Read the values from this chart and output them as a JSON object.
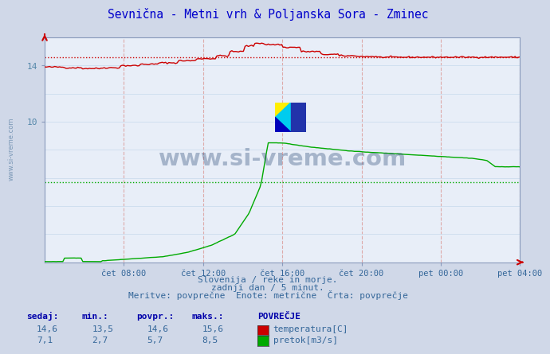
{
  "title": "Sevnična - Metni vrh & Poljanska Sora - Zminec",
  "title_color": "#0000cc",
  "bg_color": "#d0d8e8",
  "plot_bg_color": "#e8eef8",
  "temp_color": "#cc0000",
  "flow_color": "#00aa00",
  "avg_line_temp": 14.6,
  "avg_line_flow": 5.7,
  "temp_min": 13.5,
  "temp_max": 15.6,
  "temp_current": 14.6,
  "temp_avg": 14.6,
  "flow_min": 2.7,
  "flow_max": 8.5,
  "flow_current": 7.1,
  "flow_avg": 5.7,
  "x_tick_labels": [
    "čet 08:00",
    "čet 12:00",
    "čet 16:00",
    "čet 20:00",
    "pet 00:00",
    "pet 04:00"
  ],
  "footer_color": "#336699",
  "footer_line1": "Slovenija / reke in morje.",
  "footer_line2": "zadnji dan / 5 minut.",
  "footer_line3": "Meritve: povprečne  Enote: metrične  Črta: povprečje",
  "watermark": "www.si-vreme.com",
  "watermark_color": "#1a3a6a",
  "legend_title": "POVREČJE",
  "legend_temp": "temperatura[C]",
  "legend_flow": "pretok[m3/s]",
  "label_sedaj": "sedaj",
  "label_min": "min.",
  "label_povpr": "povpr.",
  "label_maks": "maks.",
  "ymin": 0,
  "ymax": 16,
  "ylabel_ticks": [
    10,
    14
  ],
  "grid_v_color": "#ddaaaa",
  "grid_h_color": "#ccddee",
  "tick_label_color": "#336699",
  "ylabel_color": "#5588aa",
  "spine_color": "#8899bb",
  "arrow_color": "#cc0000"
}
